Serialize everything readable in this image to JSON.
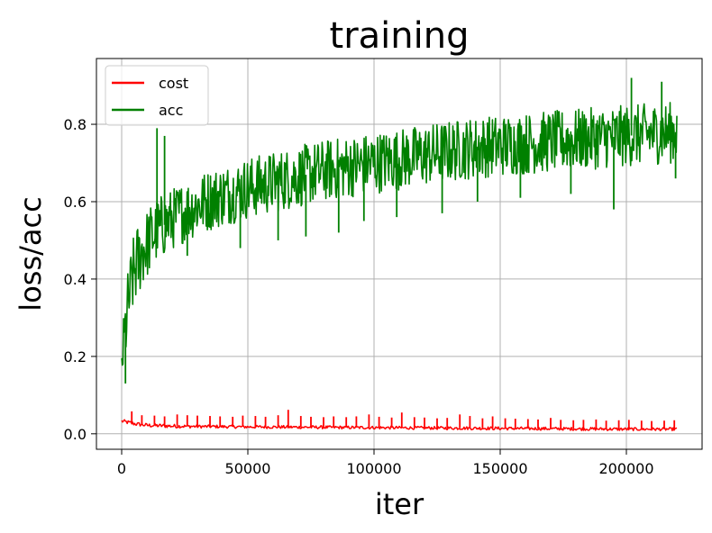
{
  "chart_data": {
    "type": "line",
    "title": "training",
    "xlabel": "iter",
    "ylabel": "loss/acc",
    "xlim": [
      -10000,
      230000
    ],
    "ylim": [
      -0.04,
      0.97
    ],
    "xticks": [
      0,
      50000,
      100000,
      150000,
      200000
    ],
    "xtick_labels": [
      "0",
      "50000",
      "100000",
      "150000",
      "200000"
    ],
    "yticks": [
      0.0,
      0.2,
      0.4,
      0.6,
      0.8
    ],
    "ytick_labels": [
      "0.0",
      "0.2",
      "0.4",
      "0.6",
      "0.8"
    ],
    "grid": true,
    "legend_position": "top-left",
    "series": [
      {
        "name": "cost",
        "color": "#ff0000",
        "x": [
          0,
          5000,
          10000,
          20000,
          30000,
          50000,
          75000,
          100000,
          125000,
          150000,
          175000,
          200000,
          220000
        ],
        "values": [
          0.033,
          0.026,
          0.022,
          0.02,
          0.019,
          0.018,
          0.017,
          0.016,
          0.015,
          0.014,
          0.013,
          0.012,
          0.012
        ],
        "band": [
          0.005,
          0.005,
          0.005,
          0.005,
          0.004,
          0.004,
          0.004,
          0.004,
          0.004,
          0.004,
          0.004,
          0.004,
          0.004
        ],
        "spike_x": [
          4000,
          8000,
          13000,
          17000,
          22000,
          26000,
          30000,
          35000,
          39000,
          44000,
          48000,
          53000,
          57000,
          62000,
          66000,
          71000,
          75000,
          80000,
          84000,
          89000,
          93000,
          98000,
          102000,
          107000,
          111000,
          116000,
          120000,
          125000,
          129000,
          134000,
          138000,
          143000,
          147000,
          152000,
          156000,
          161000,
          165000,
          170000,
          174000,
          179000,
          183000,
          188000,
          192000,
          197000,
          201000,
          206000,
          210000,
          215000,
          219000
        ],
        "spike_y": [
          0.058,
          0.048,
          0.047,
          0.045,
          0.05,
          0.048,
          0.047,
          0.046,
          0.045,
          0.044,
          0.047,
          0.046,
          0.044,
          0.048,
          0.062,
          0.046,
          0.044,
          0.043,
          0.045,
          0.043,
          0.045,
          0.05,
          0.044,
          0.042,
          0.055,
          0.043,
          0.042,
          0.04,
          0.041,
          0.05,
          0.046,
          0.04,
          0.045,
          0.04,
          0.039,
          0.038,
          0.037,
          0.041,
          0.036,
          0.035,
          0.036,
          0.037,
          0.034,
          0.035,
          0.036,
          0.034,
          0.033,
          0.034,
          0.035
        ]
      },
      {
        "name": "acc",
        "color": "#008000",
        "x": [
          0,
          1000,
          2000,
          3000,
          4000,
          5000,
          6000,
          8000,
          10000,
          12000,
          14000,
          16000,
          18000,
          20000,
          25000,
          30000,
          35000,
          40000,
          45000,
          50000,
          60000,
          70000,
          80000,
          90000,
          100000,
          110000,
          120000,
          130000,
          140000,
          150000,
          160000,
          170000,
          180000,
          190000,
          200000,
          210000,
          220000
        ],
        "values": [
          0.18,
          0.24,
          0.3,
          0.35,
          0.39,
          0.42,
          0.44,
          0.47,
          0.49,
          0.51,
          0.525,
          0.535,
          0.545,
          0.555,
          0.575,
          0.59,
          0.605,
          0.615,
          0.625,
          0.635,
          0.65,
          0.665,
          0.68,
          0.69,
          0.7,
          0.71,
          0.72,
          0.73,
          0.74,
          0.745,
          0.75,
          0.755,
          0.76,
          0.765,
          0.77,
          0.775,
          0.78
        ],
        "band": [
          0.05,
          0.09,
          0.1,
          0.1,
          0.1,
          0.1,
          0.1,
          0.095,
          0.09,
          0.09,
          0.085,
          0.085,
          0.08,
          0.08,
          0.08,
          0.08,
          0.08,
          0.08,
          0.08,
          0.08,
          0.08,
          0.08,
          0.08,
          0.08,
          0.08,
          0.08,
          0.08,
          0.08,
          0.08,
          0.08,
          0.08,
          0.08,
          0.08,
          0.08,
          0.08,
          0.08,
          0.08
        ],
        "spike_x": [
          1500,
          14000,
          17000,
          26000,
          47000,
          62000,
          73000,
          86000,
          96000,
          109000,
          127000,
          141000,
          158000,
          178000,
          195000,
          202000,
          214000,
          219500
        ],
        "spike_y": [
          0.13,
          0.79,
          0.77,
          0.46,
          0.48,
          0.5,
          0.51,
          0.52,
          0.55,
          0.56,
          0.57,
          0.6,
          0.61,
          0.62,
          0.58,
          0.92,
          0.91,
          0.66
        ]
      }
    ]
  }
}
